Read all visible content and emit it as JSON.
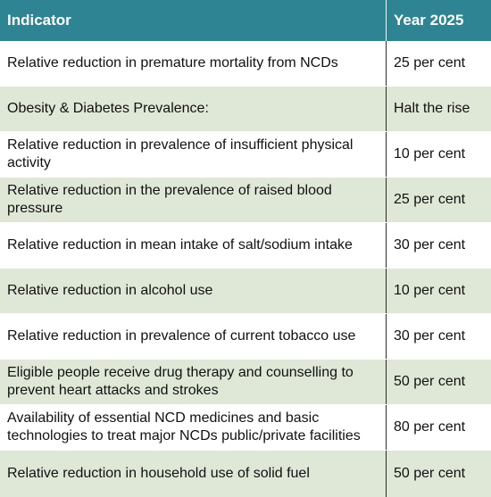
{
  "table": {
    "headers": {
      "indicator": "Indicator",
      "year": "Year 2025"
    },
    "rows": [
      {
        "indicator": "Relative reduction in premature mortality from NCDs",
        "target": "25 per cent"
      },
      {
        "indicator": "Obesity & Diabetes Prevalence:",
        "target": "Halt the rise"
      },
      {
        "indicator": "Relative reduction in prevalence of insufficient physical activity",
        "target": "10 per cent"
      },
      {
        "indicator": "Relative reduction in the prevalence of raised blood pressure",
        "target": "25 per cent"
      },
      {
        "indicator": "Relative reduction in mean intake of salt/sodium intake",
        "target": "30 per cent"
      },
      {
        "indicator": "Relative reduction in alcohol use",
        "target": "10 per cent"
      },
      {
        "indicator": "Relative reduction in prevalence of  current tobacco use",
        "target": "30 per cent"
      },
      {
        "indicator": "Eligible people receive drug therapy and counselling  to prevent heart attacks and strokes",
        "target": "50 per cent"
      },
      {
        "indicator": "Availability of essential NCD medicines and basic technologies to treat major NCDs public/private facilities",
        "target": "80 per cent"
      },
      {
        "indicator": "Relative reduction in household use of solid fuel",
        "target": "50 per cent"
      }
    ]
  },
  "colors": {
    "header_bg": "#2f8493",
    "header_text": "#ffffff",
    "stripe_bg": "#dfe8d6",
    "row_bg": "#ffffff"
  }
}
